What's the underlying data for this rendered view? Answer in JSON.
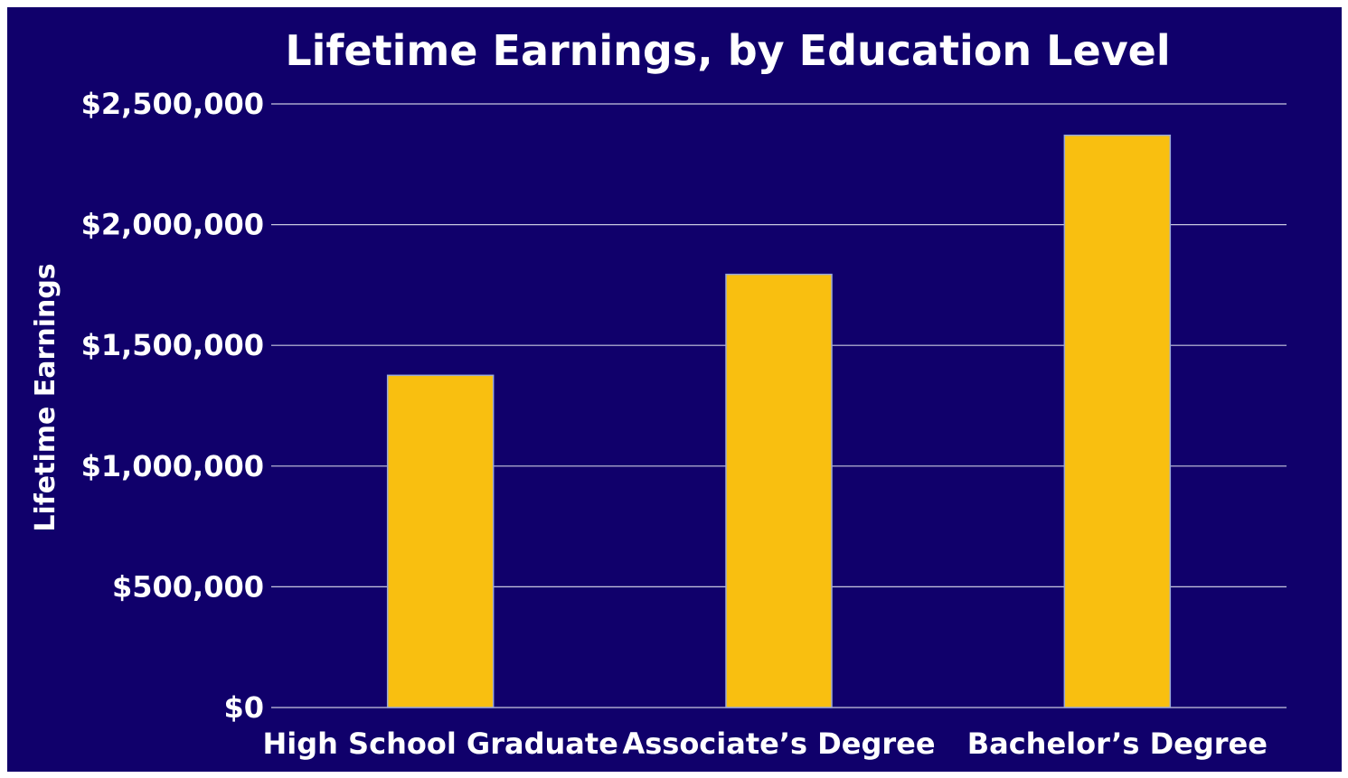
{
  "chart_data": {
    "type": "bar",
    "title": "Lifetime Earnings, by Education Level",
    "xlabel": "",
    "ylabel": "Lifetime Earnings",
    "categories": [
      "High School Graduate",
      "Associate’s Degree",
      "Bachelor’s Degree"
    ],
    "values": [
      1376000,
      1794000,
      2370000
    ],
    "ylim": [
      0,
      2500000
    ],
    "yticks": [
      0,
      500000,
      1000000,
      1500000,
      2000000,
      2500000
    ],
    "ytick_labels": [
      "$0",
      "$500,000",
      "$1,000,000",
      "$1,500,000",
      "$2,000,000",
      "$2,500,000"
    ],
    "grid": true,
    "legend": "none",
    "colors": {
      "background": "#10006b",
      "bar": "#f9bf10",
      "text": "#ffffff",
      "grid": "#c8c8e0"
    }
  }
}
